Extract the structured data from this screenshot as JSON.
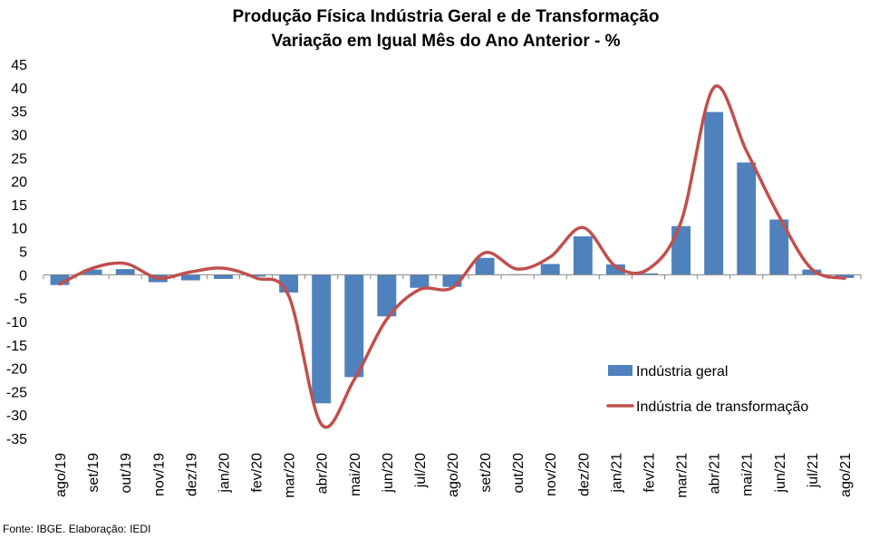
{
  "chart_data": {
    "type": "bar",
    "title": [
      "Produção Física Indústria Geral e de Transformação",
      "Variação em Igual Mês do Ano Anterior - %"
    ],
    "source": "Fonte: IBGE. Elaboração: IEDI",
    "categories": [
      "ago/19",
      "set/19",
      "out/19",
      "nov/19",
      "dez/19",
      "jan/20",
      "fev/20",
      "mar/20",
      "abr/20",
      "mai/20",
      "jun/20",
      "jul/20",
      "ago/20",
      "set/20",
      "out/20",
      "nov/20",
      "dez/20",
      "jan/21",
      "fev/21",
      "mar/21",
      "abr/21",
      "mai/21",
      "jun/21",
      "jul/21",
      "ago/21"
    ],
    "y_ticks": [
      "45",
      "40",
      "35",
      "30",
      "25",
      "20",
      "15",
      "10",
      "5",
      "0",
      "-5",
      "-10",
      "-15",
      "-20",
      "-25",
      "-30",
      "-35"
    ],
    "ylim": [
      -35,
      45
    ],
    "legend_position": "right-middle",
    "series": [
      {
        "name": "Indústria geral",
        "kind": "bar",
        "color": "#4f81bd",
        "values": [
          -2.2,
          1.1,
          1.2,
          -1.6,
          -1.2,
          -0.9,
          -0.4,
          -3.8,
          -27.5,
          -21.9,
          -8.9,
          -2.8,
          -2.6,
          3.6,
          0.1,
          2.3,
          8.2,
          2.2,
          0.3,
          10.4,
          34.8,
          24.0,
          11.8,
          1.1,
          -0.7
        ]
      },
      {
        "name": "Indústria de transformação",
        "kind": "line",
        "color": "#c0504d",
        "values": [
          -2.0,
          1.4,
          2.4,
          -0.7,
          0.6,
          1.4,
          -0.7,
          -4.5,
          -32.0,
          -22.5,
          -9.5,
          -3.2,
          -2.8,
          4.7,
          1.2,
          3.8,
          10.1,
          1.8,
          1.2,
          11.3,
          40.0,
          26.5,
          12.5,
          1.2,
          -0.8
        ]
      }
    ]
  }
}
